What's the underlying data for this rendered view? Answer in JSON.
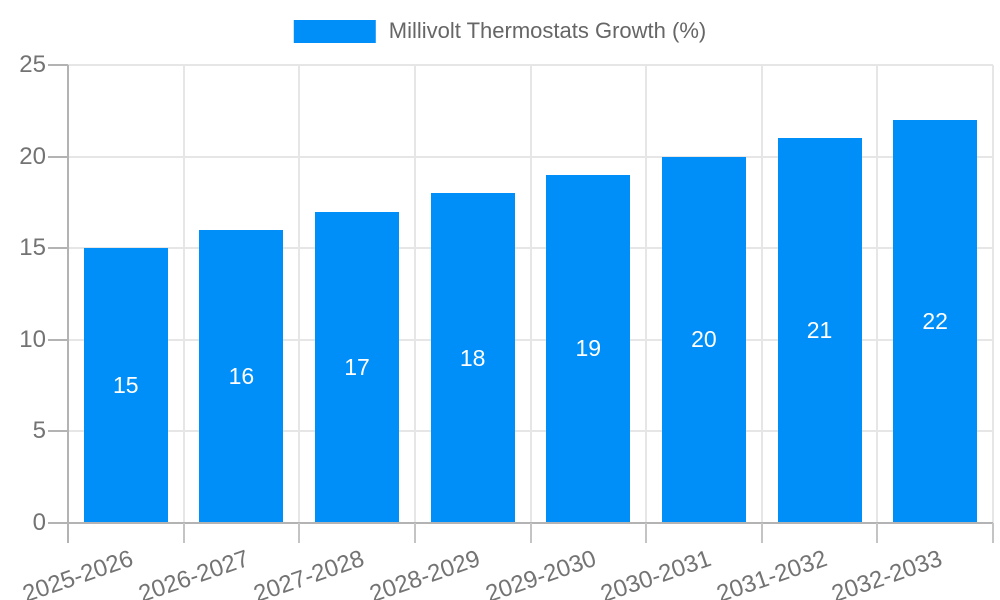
{
  "legend": {
    "label": "Millivolt Thermostats Growth (%)",
    "swatch_color": "#008ff8"
  },
  "chart_data": {
    "type": "bar",
    "title": "Millivolt Thermostats Growth (%)",
    "legend_position": "top-center",
    "categories": [
      "2025-2026",
      "2026-2027",
      "2027-2028",
      "2028-2029",
      "2029-2030",
      "2030-2031",
      "2031-2032",
      "2032-2033"
    ],
    "values": [
      15,
      16,
      17,
      18,
      19,
      20,
      21,
      22
    ],
    "data_labels": [
      "15",
      "16",
      "17",
      "18",
      "19",
      "20",
      "21",
      "22"
    ],
    "xlabel": "",
    "ylabel": "",
    "ylim": [
      0,
      25
    ],
    "yticks": [
      0,
      5,
      10,
      15,
      20,
      25
    ],
    "grid": true,
    "colors": {
      "bar": "#008ff8",
      "bar_label": "#ffffff",
      "gridline": "#e6e6e6",
      "axis": "#b3b3b3",
      "tick_text": "#737373",
      "title_text": "#666666"
    }
  }
}
